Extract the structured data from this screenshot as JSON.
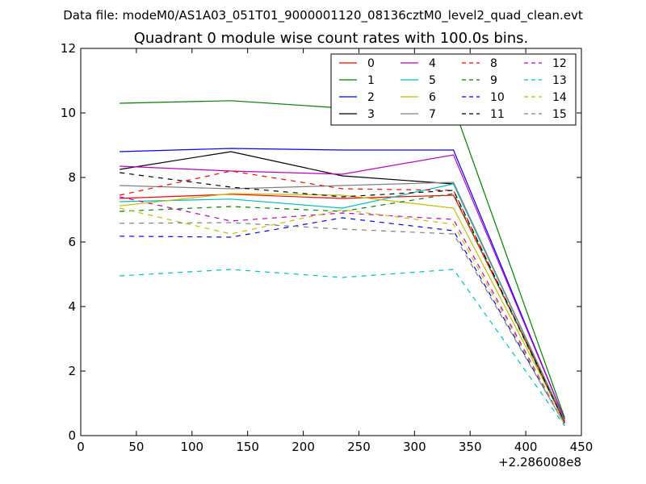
{
  "suptitle": "Data file: modeM0/AS1A03_051T01_9000001120_08136cztM0_level2_quad_clean.evt",
  "chart_data": {
    "type": "line",
    "title": "Quadrant 0 module wise count rates with 100.0s bins.",
    "xlabel": "",
    "ylabel": "",
    "x_offset_label": "+2.286008e8",
    "xlim": [
      0,
      450
    ],
    "ylim": [
      0,
      12
    ],
    "xticks": [
      0,
      50,
      100,
      150,
      200,
      250,
      300,
      350,
      400,
      450
    ],
    "yticks": [
      0,
      2,
      4,
      6,
      8,
      10,
      12
    ],
    "x": [
      35,
      135,
      235,
      335,
      435
    ],
    "legend_location": "top-right",
    "legend_columns": 4,
    "series": [
      {
        "name": "0",
        "color": "#ff0000",
        "dash": "solid",
        "values": [
          7.35,
          7.48,
          7.35,
          7.45,
          0.5
        ]
      },
      {
        "name": "1",
        "color": "#008000",
        "dash": "solid",
        "values": [
          10.3,
          10.38,
          10.15,
          10.2,
          0.55
        ]
      },
      {
        "name": "2",
        "color": "#0000ff",
        "dash": "solid",
        "values": [
          8.8,
          8.9,
          8.85,
          8.85,
          0.5
        ]
      },
      {
        "name": "3",
        "color": "#000000",
        "dash": "solid",
        "values": [
          8.25,
          8.8,
          8.05,
          7.8,
          0.45
        ]
      },
      {
        "name": "4",
        "color": "#bf00bf",
        "dash": "solid",
        "values": [
          8.35,
          8.2,
          8.1,
          8.7,
          0.5
        ]
      },
      {
        "name": "5",
        "color": "#00bfbf",
        "dash": "solid",
        "values": [
          7.25,
          7.33,
          7.05,
          7.8,
          0.45
        ]
      },
      {
        "name": "6",
        "color": "#bfbf00",
        "dash": "solid",
        "values": [
          7.12,
          7.5,
          7.45,
          7.05,
          0.45
        ]
      },
      {
        "name": "7",
        "color": "#808080",
        "dash": "solid",
        "values": [
          7.75,
          7.65,
          7.75,
          7.85,
          0.45
        ]
      },
      {
        "name": "8",
        "color": "#ff0000",
        "dash": "dashed",
        "values": [
          7.45,
          8.2,
          7.65,
          7.6,
          0.4
        ]
      },
      {
        "name": "9",
        "color": "#008000",
        "dash": "dashed",
        "values": [
          6.95,
          7.1,
          6.95,
          7.5,
          0.4
        ]
      },
      {
        "name": "10",
        "color": "#0000ff",
        "dash": "dashed",
        "values": [
          6.18,
          6.15,
          6.75,
          6.35,
          0.35
        ]
      },
      {
        "name": "11",
        "color": "#000000",
        "dash": "dashed",
        "values": [
          8.15,
          7.7,
          7.4,
          7.6,
          0.4
        ]
      },
      {
        "name": "12",
        "color": "#bf00bf",
        "dash": "dashed",
        "values": [
          7.4,
          6.65,
          6.9,
          6.7,
          0.35
        ]
      },
      {
        "name": "13",
        "color": "#00bfbf",
        "dash": "dashed",
        "values": [
          4.95,
          5.15,
          4.9,
          5.15,
          0.3
        ]
      },
      {
        "name": "14",
        "color": "#bfbf00",
        "dash": "dashed",
        "values": [
          7.05,
          6.25,
          7.0,
          6.55,
          0.35
        ]
      },
      {
        "name": "15",
        "color": "#808080",
        "dash": "dashed",
        "values": [
          6.58,
          6.6,
          6.4,
          6.25,
          0.35
        ]
      }
    ]
  }
}
